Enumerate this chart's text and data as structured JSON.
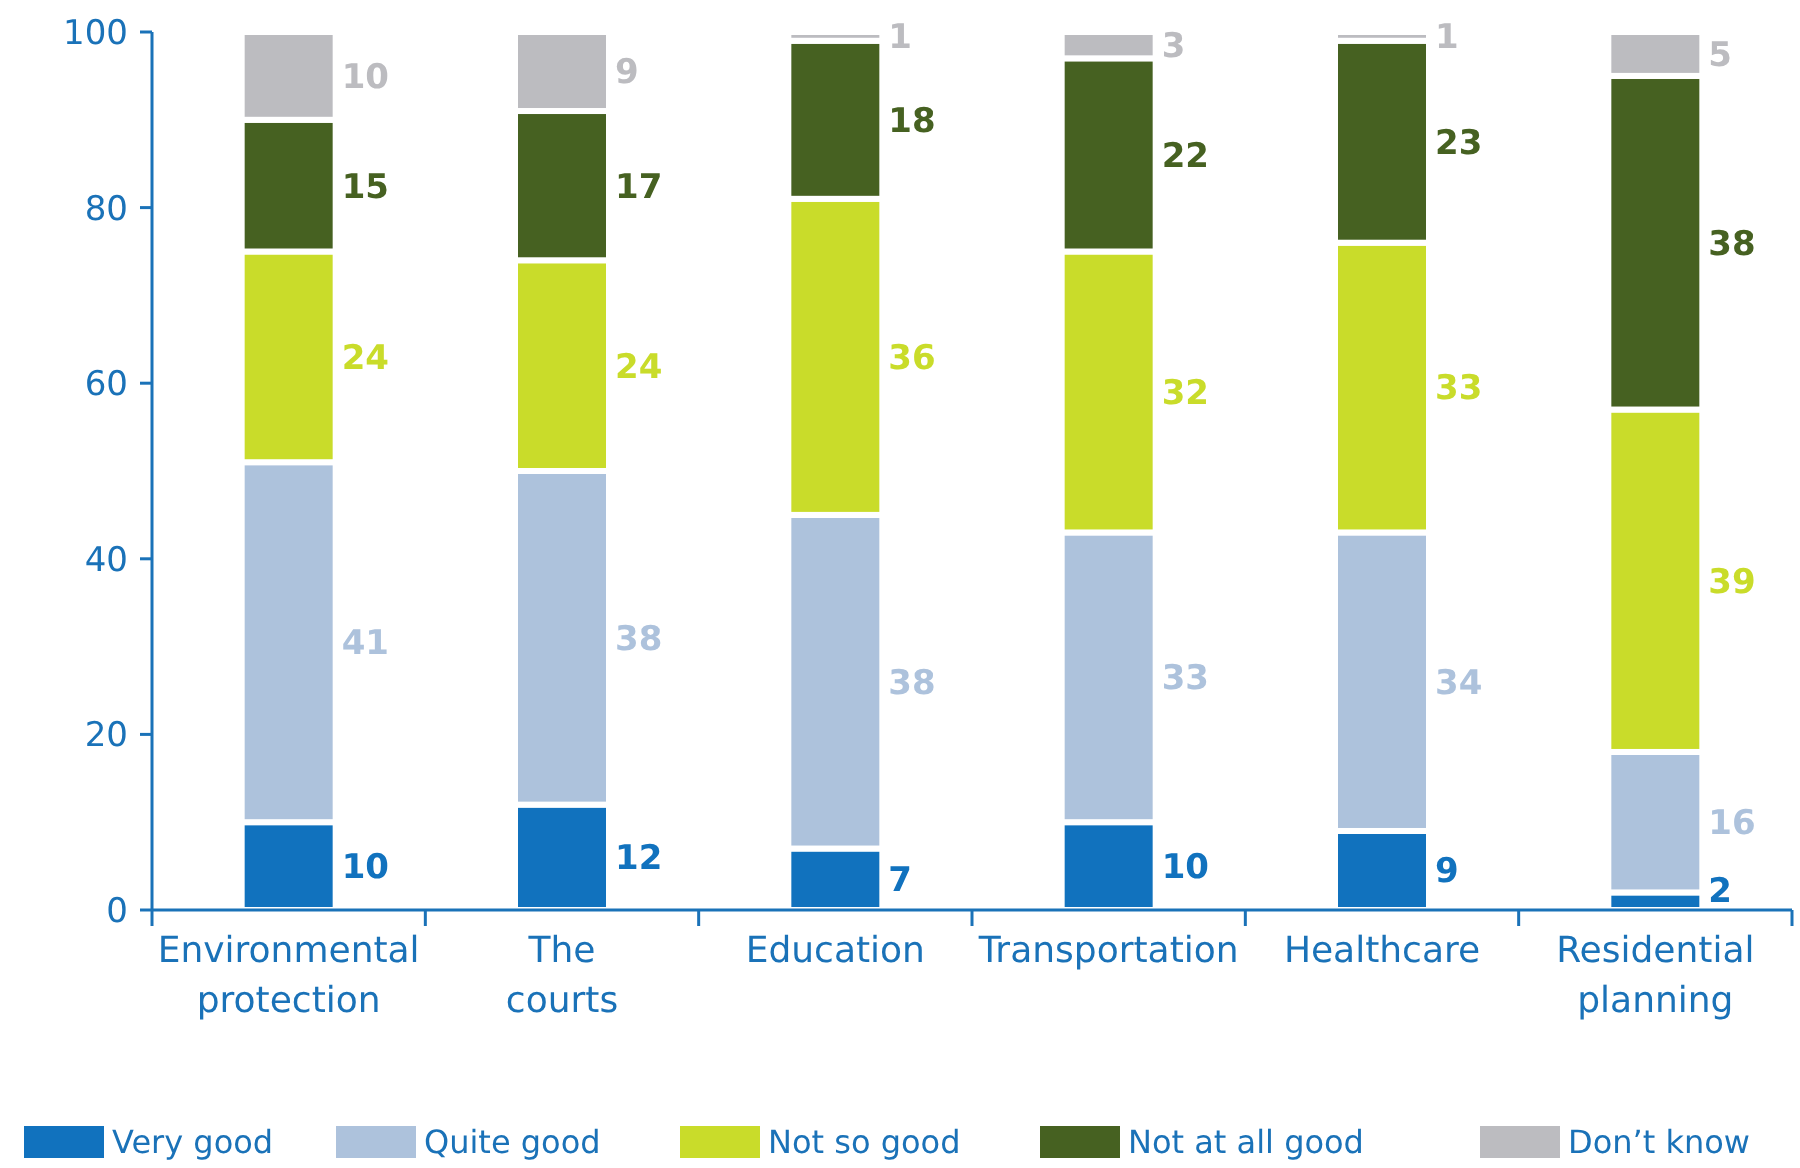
{
  "chart_data": {
    "type": "bar",
    "stacked": true,
    "categories": [
      "Environmental protection",
      "The courts",
      "Education",
      "Transportation",
      "Healthcare",
      "Residential planning"
    ],
    "series": [
      {
        "name": "Very good",
        "color": "#1172be",
        "values": [
          10,
          12,
          7,
          10,
          9,
          2
        ]
      },
      {
        "name": "Quite good",
        "color": "#adc2dc",
        "values": [
          41,
          38,
          38,
          33,
          34,
          16
        ]
      },
      {
        "name": "Not so good",
        "color": "#c9dc2a",
        "values": [
          24,
          24,
          36,
          32,
          33,
          39
        ]
      },
      {
        "name": "Not at all good",
        "color": "#466121",
        "values": [
          15,
          17,
          18,
          22,
          23,
          38
        ]
      },
      {
        "name": "Don’t know",
        "color": "#bcbcc0",
        "values": [
          10,
          9,
          1,
          3,
          1,
          5
        ]
      }
    ],
    "ylim": [
      0,
      100
    ],
    "yticks": [
      0,
      20,
      40,
      60,
      80,
      100
    ],
    "data_labels": true,
    "legend": "bottom"
  }
}
